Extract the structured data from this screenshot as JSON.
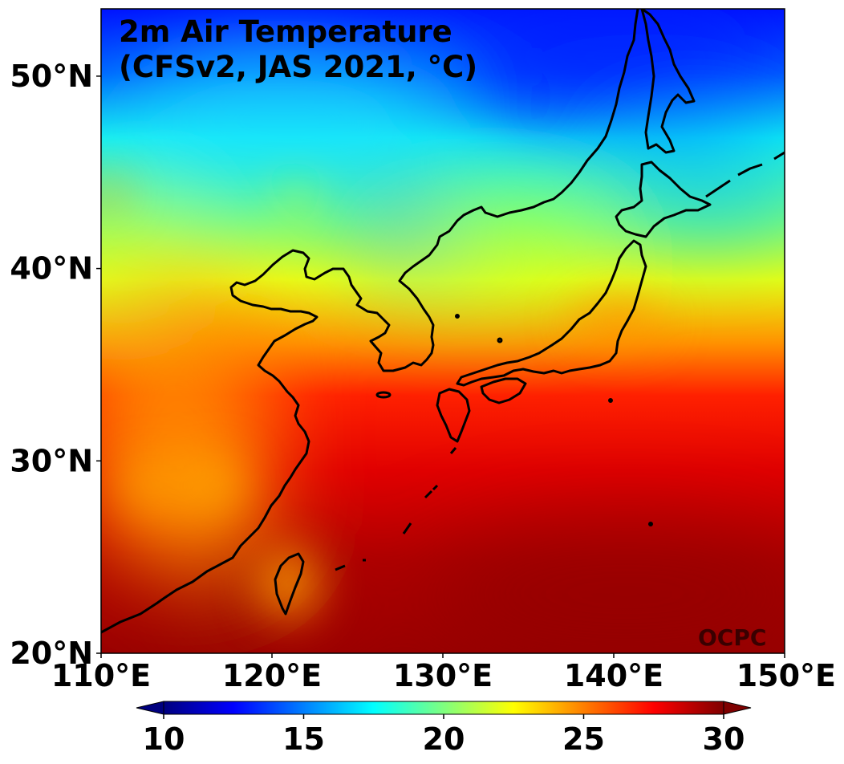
{
  "title": {
    "line1": "2m Air Temperature",
    "line2": "(CFSv2, JAS 2021, °C)"
  },
  "credit": "OCPC",
  "map": {
    "lon_range": [
      110,
      150
    ],
    "lat_range": [
      20,
      53.5
    ],
    "x_ticks": [
      {
        "lon": 110,
        "label": "110°E"
      },
      {
        "lon": 120,
        "label": "120°E"
      },
      {
        "lon": 130,
        "label": "130°E"
      },
      {
        "lon": 140,
        "label": "140°E"
      },
      {
        "lon": 150,
        "label": "150°E"
      }
    ],
    "y_ticks": [
      {
        "lat": 20,
        "label": "20°N"
      },
      {
        "lat": 30,
        "label": "30°N"
      },
      {
        "lat": 40,
        "label": "40°N"
      },
      {
        "lat": 50,
        "label": "50°N"
      }
    ]
  },
  "colorbar": {
    "min": 10,
    "max": 30,
    "extend": "both",
    "colormap": "jet",
    "ticks": [
      {
        "value": 10,
        "label": "10"
      },
      {
        "value": 15,
        "label": "15"
      },
      {
        "value": 20,
        "label": "20"
      },
      {
        "value": 25,
        "label": "25"
      },
      {
        "value": 30,
        "label": "30"
      }
    ],
    "colors": [
      "#00007f",
      "#0000ff",
      "#007fff",
      "#00ffff",
      "#7fff7f",
      "#ffff00",
      "#ff7f00",
      "#ff0000",
      "#7f0000"
    ]
  }
}
